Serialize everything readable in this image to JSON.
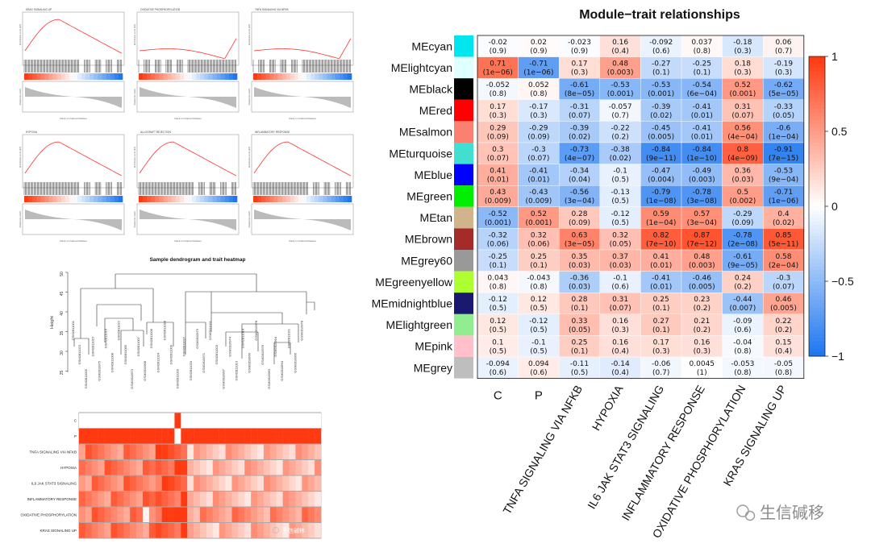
{
  "gsea": {
    "panels": [
      {
        "title": "KRAS SIGNALING UP",
        "profile": "early"
      },
      {
        "title": "OXIDATIVE PHOSPHORYLATION",
        "profile": "late"
      },
      {
        "title": "TNFA SIGNALING VIA NFKB",
        "profile": "late"
      },
      {
        "title": "HYPOXIA",
        "profile": "early"
      },
      {
        "title": "ALLOGRAFT REJECTION",
        "profile": "early"
      },
      {
        "title": "INFLAMMATORY RESPONSE",
        "profile": "early"
      }
    ],
    "ylabel_top": "Enrichment score (ES)",
    "ylabel_bottom": "Ranked list metric",
    "xlabel": "Rank in Ordered Dataset"
  },
  "dendro": {
    "title": "Sample dendrogram and trait heatmap",
    "ylabel": "Height",
    "yticks": [
      "50",
      "45",
      "40",
      "35",
      "30",
      "25"
    ],
    "samples": [
      "GSM2811001",
      "GSM2811023",
      "GSM2811005",
      "GSM2811015",
      "GSM2810975",
      "GSM2811016",
      "GSM2811008",
      "GSM2811022",
      "GSM2811065",
      "GSM2810973",
      "GSM2811007",
      "GSM2810998",
      "GSM2811006",
      "GSM2811024",
      "GSM2811028",
      "GSM2811009",
      "GSM2811029",
      "GSM2811027",
      "GSM2811020",
      "GSM2810979",
      "GSM2810971",
      "GSM2811011",
      "GSM2811003",
      "GSM2810997",
      "GSM2810974",
      "GSM2811013",
      "GSM2811014",
      "GSM2810969",
      "GSM2810978",
      "GSM2810976",
      "GSM2810983",
      "GSM2810964",
      "GSM2810994",
      "GSM2811021",
      "GSM2810966",
      "GSM2810978"
    ]
  },
  "trait_heatmap": {
    "rows": [
      "C",
      "P",
      "TNFA SIGNALING VIA NFKB",
      "HYPOXIA",
      "IL6 JAK STAT3 SIGNALING",
      "INFLAMMATORY RESPONSE",
      "OXIDATIVE PHOSPHORYLATION",
      "KRAS SIGNALING UP"
    ],
    "watermark": "生信碱移"
  },
  "chart_data": {
    "type": "heatmap",
    "title": "Module−trait relationships",
    "modules": [
      "MEcyan",
      "MElightcyan",
      "MEblack",
      "MEred",
      "MEsalmon",
      "MEturquoise",
      "MEblue",
      "MEgreen",
      "MEtan",
      "MEbrown",
      "MEgrey60",
      "MEgreenyellow",
      "MEmidnightblue",
      "MElightgreen",
      "MEpink",
      "MEgrey"
    ],
    "module_colors": [
      "#00e5ee",
      "#e0ffff",
      "#000000",
      "#ff0000",
      "#fa8072",
      "#40e0d0",
      "#0000ff",
      "#00ee00",
      "#d2b48c",
      "#a52a2a",
      "#999999",
      "#adff2f",
      "#191970",
      "#90ee90",
      "#ffc0cb",
      "#bebebe"
    ],
    "traits": [
      "C",
      "P",
      "TNFA SIGNALING VIA NFKB",
      "HYPOXIA",
      "IL6 JAK STAT3 SIGNALING",
      "INFLAMMATORY RESPONSE",
      "OXIDATIVE PHOSPHORYLATION",
      "KRAS SIGNALING UP"
    ],
    "correlations": [
      [
        "-0.02",
        "0.02",
        "-0.023",
        "0.16",
        "-0.092",
        "0.037",
        "-0.18",
        "0.06"
      ],
      [
        "0.71",
        "-0.71",
        "0.17",
        "0.48",
        "-0.27",
        "-0.25",
        "0.18",
        "-0.19"
      ],
      [
        "-0.052",
        "0.052",
        "-0.61",
        "-0.53",
        "-0.53",
        "-0.54",
        "0.52",
        "-0.62"
      ],
      [
        "0.17",
        "-0.17",
        "-0.31",
        "-0.057",
        "-0.39",
        "-0.41",
        "0.31",
        "-0.33"
      ],
      [
        "0.29",
        "-0.29",
        "-0.39",
        "-0.22",
        "-0.45",
        "-0.41",
        "0.56",
        "-0.6"
      ],
      [
        "0.3",
        "-0.3",
        "-0.73",
        "-0.38",
        "-0.84",
        "-0.84",
        "0.8",
        "-0.91"
      ],
      [
        "0.41",
        "-0.41",
        "-0.34",
        "-0.1",
        "-0.47",
        "-0.49",
        "0.36",
        "-0.53"
      ],
      [
        "0.43",
        "-0.43",
        "-0.56",
        "-0.13",
        "-0.79",
        "-0.78",
        "0.5",
        "-0.71"
      ],
      [
        "-0.52",
        "0.52",
        "0.28",
        "-0.12",
        "0.59",
        "0.57",
        "-0.29",
        "0.4"
      ],
      [
        "-0.32",
        "0.32",
        "0.63",
        "0.32",
        "0.82",
        "0.87",
        "-0.78",
        "0.85"
      ],
      [
        "-0.25",
        "0.25",
        "0.35",
        "0.37",
        "0.41",
        "0.48",
        "-0.61",
        "0.58"
      ],
      [
        "0.043",
        "-0.043",
        "-0.36",
        "-0.1",
        "-0.41",
        "-0.46",
        "0.24",
        "-0.3"
      ],
      [
        "-0.12",
        "0.12",
        "0.28",
        "0.31",
        "0.25",
        "0.23",
        "-0.44",
        "0.46"
      ],
      [
        "0.12",
        "-0.12",
        "0.33",
        "0.16",
        "0.27",
        "0.21",
        "-0.09",
        "0.22"
      ],
      [
        "0.1",
        "-0.1",
        "0.25",
        "0.16",
        "0.17",
        "0.16",
        "-0.04",
        "0.15"
      ],
      [
        "-0.094",
        "0.094",
        "-0.11",
        "-0.14",
        "-0.06",
        "0.0045",
        "-0.053",
        "-0.05"
      ]
    ],
    "pvalues": [
      [
        "(0.9)",
        "(0.9)",
        "(0.9)",
        "(0.4)",
        "(0.6)",
        "(0.8)",
        "(0.3)",
        "(0.7)"
      ],
      [
        "(1e−06)",
        "(1e−06)",
        "(0.3)",
        "(0.003)",
        "(0.1)",
        "(0.1)",
        "(0.3)",
        "(0.3)"
      ],
      [
        "(0.8)",
        "(0.8)",
        "(8e−05)",
        "(0.001)",
        "(0.001)",
        "(6e−04)",
        "(0.001)",
        "(5e−05)"
      ],
      [
        "(0.3)",
        "(0.3)",
        "(0.07)",
        "(0.7)",
        "(0.02)",
        "(0.01)",
        "(0.07)",
        "(0.05)"
      ],
      [
        "(0.09)",
        "(0.09)",
        "(0.02)",
        "(0.2)",
        "(0.005)",
        "(0.01)",
        "(4e−04)",
        "(1e−04)"
      ],
      [
        "(0.07)",
        "(0.07)",
        "(4e−07)",
        "(0.02)",
        "(9e−11)",
        "(1e−10)",
        "(4e−09)",
        "(7e−15)"
      ],
      [
        "(0.01)",
        "(0.01)",
        "(0.04)",
        "(0.5)",
        "(0.004)",
        "(0.003)",
        "(0.03)",
        "(9e−04)"
      ],
      [
        "(0.009)",
        "(0.009)",
        "(3e−04)",
        "(0.5)",
        "(1e−08)",
        "(3e−08)",
        "(0.002)",
        "(1e−06)"
      ],
      [
        "(0.001)",
        "(0.001)",
        "(0.09)",
        "(0.5)",
        "(1e−04)",
        "(3e−04)",
        "(0.09)",
        "(0.02)"
      ],
      [
        "(0.06)",
        "(0.06)",
        "(3e−05)",
        "(0.05)",
        "(7e−10)",
        "(7e−12)",
        "(2e−08)",
        "(5e−11)"
      ],
      [
        "(0.1)",
        "(0.1)",
        "(0.03)",
        "(0.03)",
        "(0.01)",
        "(0.003)",
        "(9e−05)",
        "(2e−04)"
      ],
      [
        "(0.8)",
        "(0.8)",
        "(0.03)",
        "(0.6)",
        "(0.01)",
        "(0.005)",
        "(0.2)",
        "(0.07)"
      ],
      [
        "(0.5)",
        "(0.5)",
        "(0.1)",
        "(0.07)",
        "(0.1)",
        "(0.2)",
        "(0.007)",
        "(0.005)"
      ],
      [
        "(0.5)",
        "(0.5)",
        "(0.05)",
        "(0.3)",
        "(0.1)",
        "(0.2)",
        "(0.6)",
        "(0.2)"
      ],
      [
        "(0.5)",
        "(0.5)",
        "(0.1)",
        "(0.4)",
        "(0.3)",
        "(0.3)",
        "(0.8)",
        "(0.4)"
      ],
      [
        "(0.6)",
        "(0.6)",
        "(0.5)",
        "(0.4)",
        "(0.7)",
        "(1)",
        "(0.8)",
        "(0.8)"
      ]
    ],
    "colorbar": {
      "min": -1,
      "max": 1,
      "ticks": [
        "1",
        "0.5",
        "0",
        "−0.5",
        "−1"
      ],
      "tick_values": [
        1,
        0.5,
        0,
        -0.5,
        -1
      ]
    },
    "colors": {
      "neg": "#1f77f0",
      "mid": "#ffffff",
      "pos": "#ff3a10"
    }
  },
  "watermark": {
    "text": "生信碱移"
  }
}
